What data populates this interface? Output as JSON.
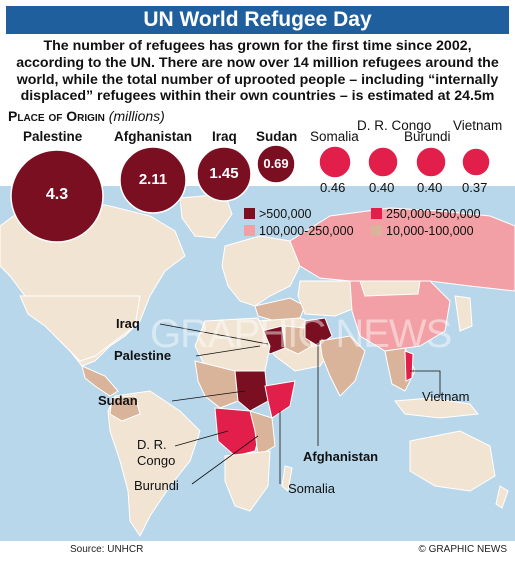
{
  "title": "UN World Refugee Day",
  "intro": "The number of refugees has grown for the first time since 2002, according to the UN. There are now over 14 million refugees around the world, while the total number of uprooted people – including “internally displaced” refugees within their own countries – is estimated at 24.5m",
  "section": {
    "title": "Place of Origin",
    "unit": "(millions)"
  },
  "colors": {
    "title_bar": "#1f5f9e",
    "large_bubble": "#7a0f22",
    "small_bubble": "#e21f4a",
    "band_over_500k": "#7a0f22",
    "band_250k_500k": "#e21f4a",
    "band_100k_250k": "#f2a0a5",
    "band_10k_100k": "#d9b49a",
    "ocean": "#b9d7ea",
    "land": "#f1e4d3"
  },
  "origins": [
    {
      "country": "Palestine",
      "value": "4.3"
    },
    {
      "country": "Afghanistan",
      "value": "2.11"
    },
    {
      "country": "Iraq",
      "value": "1.45"
    },
    {
      "country": "Sudan",
      "value": "0.69"
    },
    {
      "country": "Somalia",
      "value": "0.46"
    },
    {
      "country": "D. R. Congo",
      "value": "0.40"
    },
    {
      "country": "Burundi",
      "value": "0.40"
    },
    {
      "country": "Vietnam",
      "value": "0.37"
    }
  ],
  "legend": [
    {
      "label": ">500,000",
      "color": "#7a0f22"
    },
    {
      "label": "250,000-500,000",
      "color": "#e21f4a"
    },
    {
      "label": "100,000-250,000",
      "color": "#f2a0a5"
    },
    {
      "label": "10,000-100,000",
      "color": "#d9b49a"
    }
  ],
  "callouts": {
    "iraq": "Iraq",
    "palestine": "Palestine",
    "sudan": "Sudan",
    "drcongo_1": "D. R.",
    "drcongo_2": "Congo",
    "burundi": "Burundi",
    "afghanistan": "Afghanistan",
    "somalia": "Somalia",
    "vietnam": "Vietnam"
  },
  "watermark": "GRAPHIC NEWS",
  "footer": {
    "source": "Source: UNHCR",
    "credit": "© GRAPHIC NEWS"
  }
}
